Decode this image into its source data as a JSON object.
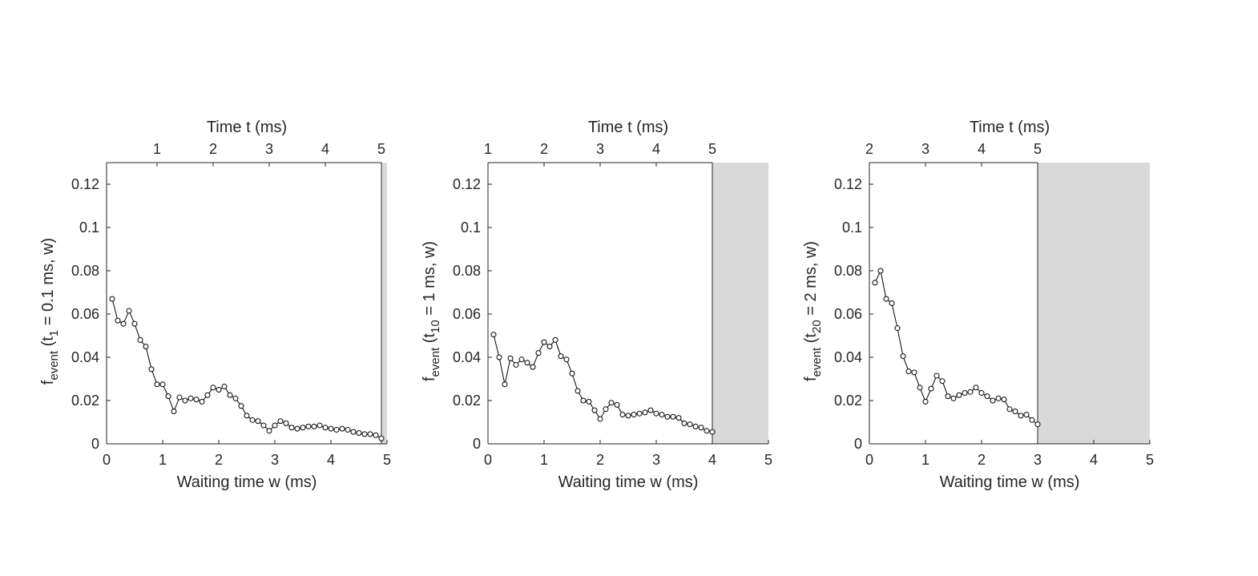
{
  "chart_data": [
    {
      "type": "line",
      "xlabel": "Waiting time w (ms)",
      "ylabel": {
        "base": "f",
        "sub": "event",
        "open": " (t",
        "sub2": "1",
        "rest": " = 0.1 ms, w)"
      },
      "top_xlabel": "Time t (ms)",
      "xlim": [
        0,
        5
      ],
      "ylim": [
        0,
        0.13
      ],
      "xticks": [
        "0",
        "1",
        "2",
        "3",
        "4",
        "5"
      ],
      "yticks": [
        "0",
        "0.02",
        "0.04",
        "0.06",
        "0.08",
        "0.1",
        "0.12"
      ],
      "top_xticks": [
        "1",
        "2",
        "3",
        "4",
        "5"
      ],
      "top_offset": 0.1,
      "shaded_from": 4.9,
      "grid": false,
      "series": [
        {
          "marker": "open-circle",
          "color": "#000000",
          "x": [
            0.1,
            0.2,
            0.3,
            0.4,
            0.5,
            0.6,
            0.7,
            0.8,
            0.9,
            1.0,
            1.1,
            1.2,
            1.3,
            1.4,
            1.5,
            1.6,
            1.7,
            1.8,
            1.9,
            2.0,
            2.1,
            2.2,
            2.3,
            2.4,
            2.5,
            2.6,
            2.7,
            2.8,
            2.9,
            3.0,
            3.1,
            3.2,
            3.3,
            3.4,
            3.5,
            3.6,
            3.7,
            3.8,
            3.9,
            4.0,
            4.1,
            4.2,
            4.3,
            4.4,
            4.5,
            4.6,
            4.7,
            4.8,
            4.9
          ],
          "y": [
            0.067,
            0.057,
            0.0555,
            0.0615,
            0.0555,
            0.048,
            0.045,
            0.0345,
            0.0275,
            0.0275,
            0.022,
            0.015,
            0.0215,
            0.02,
            0.021,
            0.0205,
            0.0195,
            0.0225,
            0.026,
            0.025,
            0.0265,
            0.0225,
            0.021,
            0.0175,
            0.013,
            0.011,
            0.0105,
            0.0085,
            0.006,
            0.0085,
            0.0105,
            0.0095,
            0.0075,
            0.007,
            0.0075,
            0.008,
            0.008,
            0.0085,
            0.0075,
            0.007,
            0.0065,
            0.007,
            0.0065,
            0.0055,
            0.005,
            0.0045,
            0.0045,
            0.004,
            0.0025
          ]
        }
      ]
    },
    {
      "type": "line",
      "xlabel": "Waiting time w (ms)",
      "ylabel": {
        "base": "f",
        "sub": "event",
        "open": " (t",
        "sub2": "10",
        "rest": " = 1 ms, w)"
      },
      "top_xlabel": "Time t (ms)",
      "xlim": [
        0,
        5
      ],
      "ylim": [
        0,
        0.13
      ],
      "xticks": [
        "0",
        "1",
        "2",
        "3",
        "4",
        "5"
      ],
      "yticks": [
        "0",
        "0.02",
        "0.04",
        "0.06",
        "0.08",
        "0.1",
        "0.12"
      ],
      "top_xticks": [
        "1",
        "2",
        "3",
        "4",
        "5"
      ],
      "top_offset": 1,
      "shaded_from": 4.0,
      "grid": false,
      "series": [
        {
          "marker": "open-circle",
          "color": "#000000",
          "x": [
            0.1,
            0.2,
            0.3,
            0.4,
            0.5,
            0.6,
            0.7,
            0.8,
            0.9,
            1.0,
            1.1,
            1.2,
            1.3,
            1.4,
            1.5,
            1.6,
            1.7,
            1.8,
            1.9,
            2.0,
            2.1,
            2.2,
            2.3,
            2.4,
            2.5,
            2.6,
            2.7,
            2.8,
            2.9,
            3.0,
            3.1,
            3.2,
            3.3,
            3.4,
            3.5,
            3.6,
            3.7,
            3.8,
            3.9,
            4.0
          ],
          "y": [
            0.0505,
            0.04,
            0.0275,
            0.0395,
            0.0365,
            0.039,
            0.0375,
            0.0355,
            0.042,
            0.047,
            0.045,
            0.048,
            0.0405,
            0.039,
            0.0325,
            0.0245,
            0.02,
            0.0195,
            0.0155,
            0.0115,
            0.016,
            0.019,
            0.018,
            0.0135,
            0.013,
            0.0135,
            0.014,
            0.0145,
            0.0155,
            0.014,
            0.0135,
            0.0125,
            0.0125,
            0.012,
            0.0095,
            0.009,
            0.008,
            0.0075,
            0.006,
            0.0055
          ]
        }
      ]
    },
    {
      "type": "line",
      "xlabel": "Waiting time w (ms)",
      "ylabel": {
        "base": "f",
        "sub": "event",
        "open": " (t",
        "sub2": "20",
        "rest": " = 2 ms, w)"
      },
      "top_xlabel": "Time t (ms)",
      "xlim": [
        0,
        5
      ],
      "ylim": [
        0,
        0.13
      ],
      "xticks": [
        "0",
        "1",
        "2",
        "3",
        "4",
        "5"
      ],
      "yticks": [
        "0",
        "0.02",
        "0.04",
        "0.06",
        "0.08",
        "0.1",
        "0.12"
      ],
      "top_xticks": [
        "2",
        "3",
        "4",
        "5"
      ],
      "top_offset": 2,
      "shaded_from": 3.0,
      "grid": false,
      "series": [
        {
          "marker": "open-circle",
          "color": "#000000",
          "x": [
            0.1,
            0.2,
            0.3,
            0.4,
            0.5,
            0.6,
            0.7,
            0.8,
            0.9,
            1.0,
            1.1,
            1.2,
            1.3,
            1.4,
            1.5,
            1.6,
            1.7,
            1.8,
            1.9,
            2.0,
            2.1,
            2.2,
            2.3,
            2.4,
            2.5,
            2.6,
            2.7,
            2.8,
            2.9,
            3.0
          ],
          "y": [
            0.0745,
            0.08,
            0.067,
            0.065,
            0.0535,
            0.0405,
            0.0335,
            0.033,
            0.026,
            0.0195,
            0.0255,
            0.0315,
            0.029,
            0.022,
            0.021,
            0.0225,
            0.0235,
            0.024,
            0.026,
            0.0235,
            0.022,
            0.02,
            0.021,
            0.0205,
            0.016,
            0.015,
            0.013,
            0.0135,
            0.011,
            0.009
          ]
        }
      ]
    }
  ]
}
